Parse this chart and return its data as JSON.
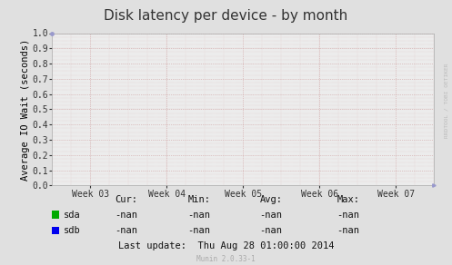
{
  "title": "Disk latency per device - by month",
  "ylabel": "Average IO Wait (seconds)",
  "xlabels": [
    "Week 03",
    "Week 04",
    "Week 05",
    "Week 06",
    "Week 07"
  ],
  "xtick_positions": [
    0.1,
    0.3,
    0.5,
    0.7,
    0.9
  ],
  "ylim": [
    0.0,
    1.0
  ],
  "yticks": [
    0.0,
    0.1,
    0.2,
    0.3,
    0.4,
    0.5,
    0.6,
    0.7,
    0.8,
    0.9,
    1.0
  ],
  "bg_color": "#e0e0e0",
  "plot_bg_color": "#ececec",
  "grid_color": "#cc9999",
  "grid_minor_color": "#ddbbbb",
  "legend_items": [
    {
      "label": "sda",
      "color": "#00aa00"
    },
    {
      "label": "sdb",
      "color": "#0000ee"
    }
  ],
  "stats_headers": [
    "Cur:",
    "Min:",
    "Avg:",
    "Max:"
  ],
  "stats_sda": [
    "-nan",
    "-nan",
    "-nan",
    "-nan"
  ],
  "stats_sdb": [
    "-nan",
    "-nan",
    "-nan",
    "-nan"
  ],
  "last_update": "Last update:  Thu Aug 28 01:00:00 2014",
  "munin_label": "Munin 2.0.33-1",
  "rrdtool_label": "RRDTOOL / TOBI OETIKER",
  "title_fontsize": 11,
  "axis_label_fontsize": 7.5,
  "tick_fontsize": 7,
  "stats_fontsize": 7.5
}
